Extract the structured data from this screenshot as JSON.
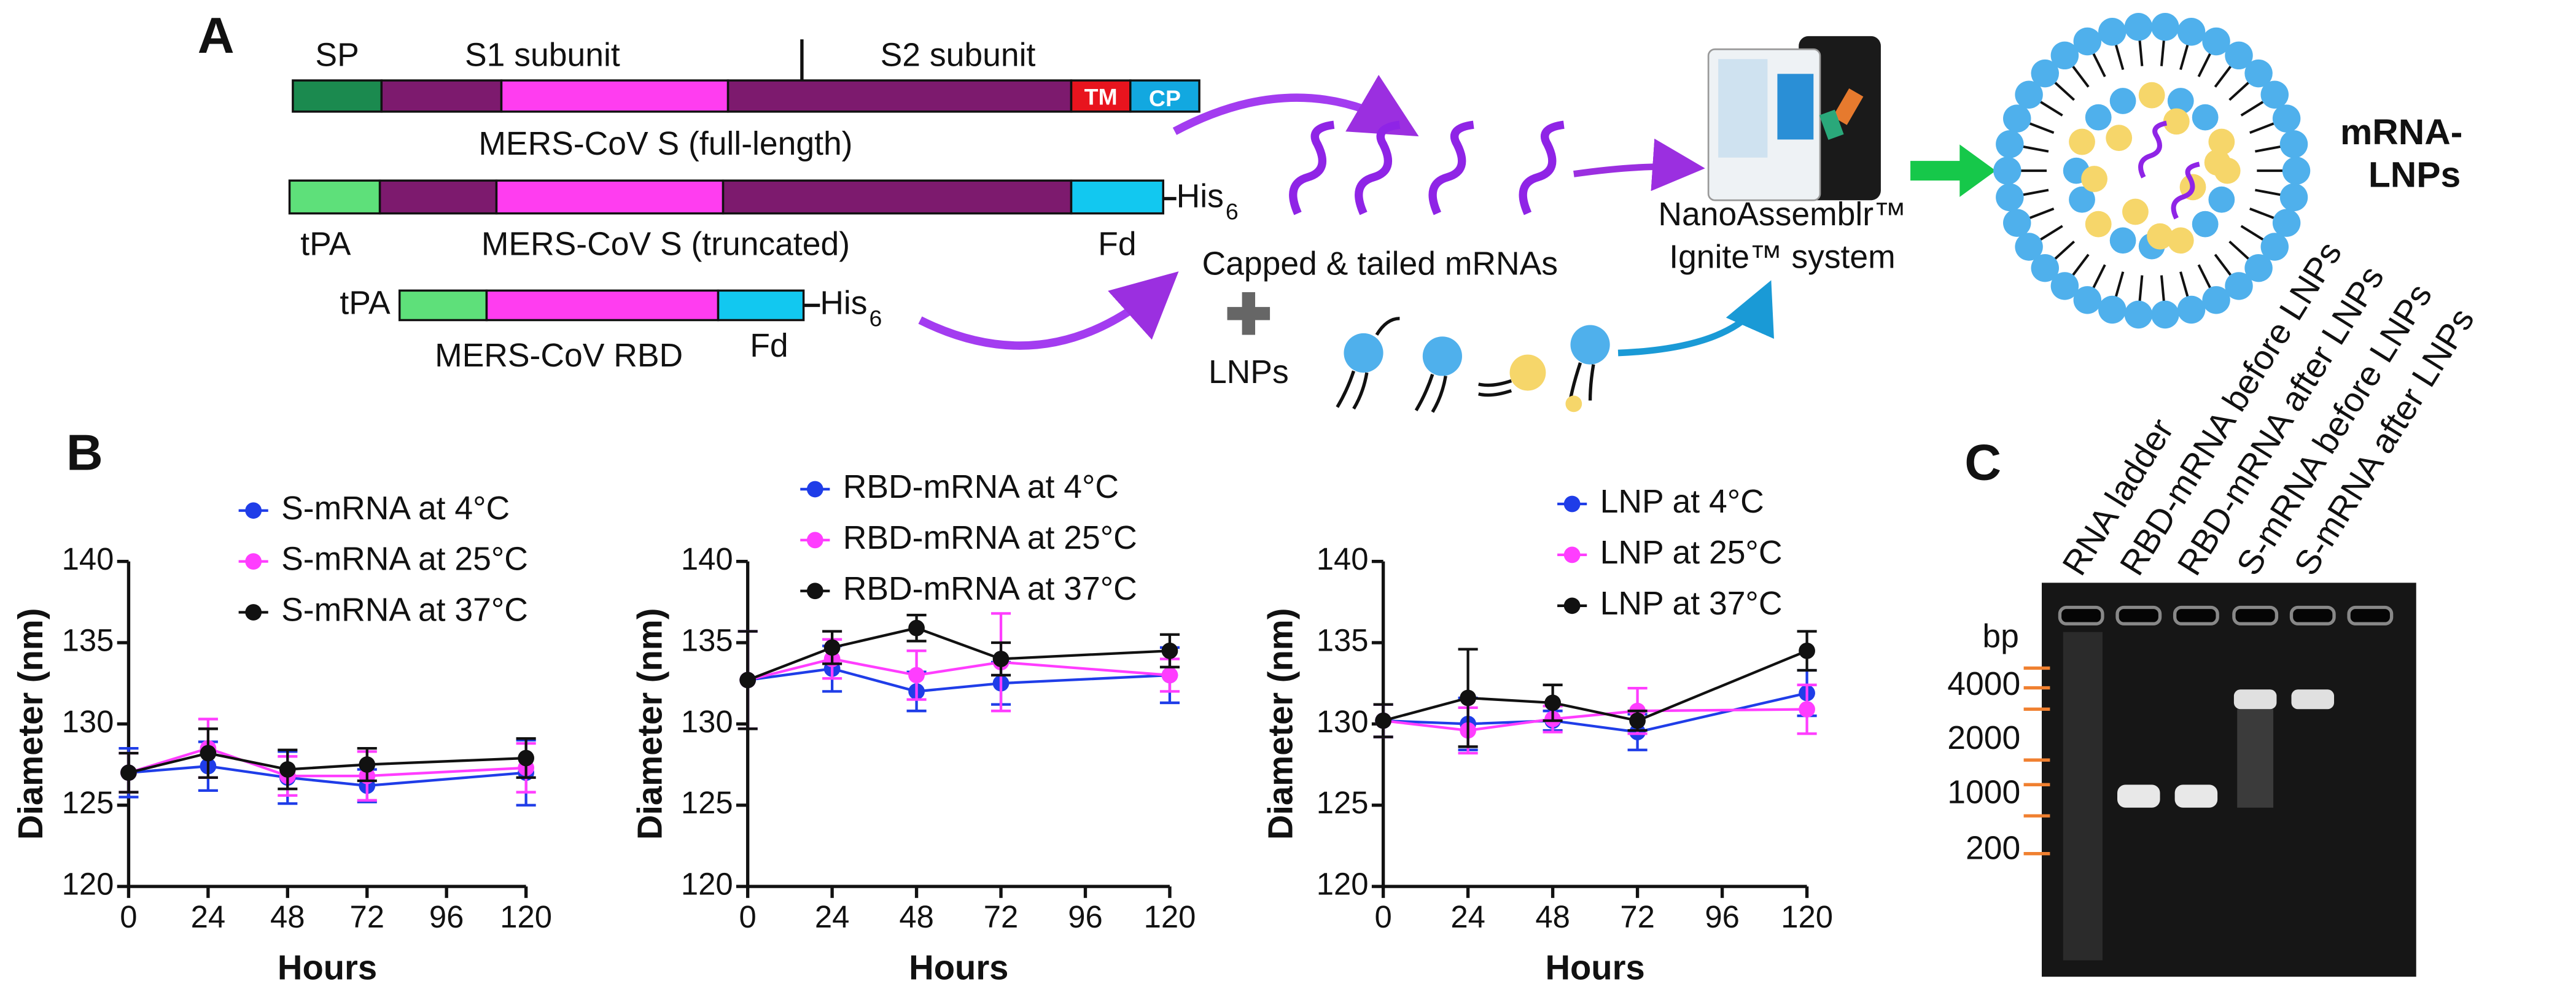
{
  "panel_a": {
    "label": "A",
    "sp": "SP",
    "s1": "S1 subunit",
    "s2": "S2 subunit",
    "tm": "TM",
    "cp": "CP",
    "full_length": "MERS-CoV S (full-length)",
    "tpa_1": "tPA",
    "truncated": "MERS-CoV S (truncated)",
    "fd_1": "Fd",
    "his_1": "His",
    "his_sub_1": "6",
    "tpa_2": "tPA",
    "rbd": "MERS-CoV RBD",
    "fd_2": "Fd",
    "his_2": "His",
    "his_sub_2": "6",
    "mrnas": "Capped & tailed mRNAs",
    "lnps": "LNPs",
    "device_1": "NanoAssemblr™",
    "device_2": "Ignite™ system",
    "product_1": "mRNA-",
    "product_2": "LNPs"
  },
  "panel_b": {
    "label": "B"
  },
  "panel_c": {
    "label": "C",
    "lanes": [
      "RNA ladder",
      "RBD-mRNA before LNPs",
      "RBD-mRNA after LNPs",
      "S-mRNA before LNPs",
      "S-mRNA after LNPs"
    ],
    "unit": "bp",
    "ladder": [
      "4000",
      "2000",
      "1000",
      "200"
    ]
  },
  "chart_data": [
    {
      "type": "line",
      "xlabel": "Hours",
      "ylabel": "Diameter (nm)",
      "x": [
        0,
        24,
        48,
        72,
        120
      ],
      "xlim": [
        0,
        120
      ],
      "xticks": [
        0,
        24,
        48,
        72,
        96,
        120
      ],
      "ylim": [
        120,
        140
      ],
      "yticks": [
        120,
        125,
        130,
        135,
        140
      ],
      "series": [
        {
          "name": "S-mRNA at 4°C",
          "color": "#1f3de8",
          "values": [
            127.0,
            127.4,
            126.7,
            126.2,
            127.0
          ],
          "errors": [
            1.5,
            1.5,
            1.6,
            1.0,
            2.0
          ]
        },
        {
          "name": "S-mRNA at 25°C",
          "color": "#ff3dff",
          "values": [
            127.0,
            128.5,
            126.8,
            126.8,
            127.3
          ],
          "errors": [
            1.2,
            1.8,
            1.2,
            1.5,
            1.5
          ]
        },
        {
          "name": "S-mRNA at 37°C",
          "color": "#111111",
          "values": [
            127.0,
            128.2,
            127.2,
            127.5,
            127.9
          ],
          "errors": [
            1.2,
            1.5,
            1.2,
            1.0,
            1.2
          ]
        }
      ]
    },
    {
      "type": "line",
      "xlabel": "Hours",
      "ylabel": "Diameter (nm)",
      "x": [
        0,
        24,
        48,
        72,
        120
      ],
      "xlim": [
        0,
        120
      ],
      "xticks": [
        0,
        24,
        48,
        72,
        96,
        120
      ],
      "ylim": [
        120,
        140
      ],
      "yticks": [
        120,
        125,
        130,
        135,
        140
      ],
      "series": [
        {
          "name": "RBD-mRNA at 4°C",
          "color": "#1f3de8",
          "values": [
            132.7,
            133.4,
            132.0,
            132.5,
            133.0
          ],
          "errors": [
            3.0,
            1.4,
            1.2,
            1.3,
            1.7
          ]
        },
        {
          "name": "RBD-mRNA at 25°C",
          "color": "#ff3dff",
          "values": [
            132.7,
            134.0,
            133.0,
            133.8,
            133.0
          ],
          "errors": [
            3.0,
            1.2,
            1.5,
            3.0,
            1.0
          ]
        },
        {
          "name": "RBD-mRNA at 37°C",
          "color": "#111111",
          "values": [
            132.7,
            134.7,
            135.9,
            134.0,
            134.5
          ],
          "errors": [
            3.0,
            1.0,
            0.8,
            1.0,
            1.0
          ]
        }
      ]
    },
    {
      "type": "line",
      "xlabel": "Hours",
      "ylabel": "Diameter (nm)",
      "x": [
        0,
        24,
        48,
        72,
        120
      ],
      "xlim": [
        0,
        120
      ],
      "xticks": [
        0,
        24,
        48,
        72,
        96,
        120
      ],
      "ylim": [
        120,
        140
      ],
      "yticks": [
        120,
        125,
        130,
        135,
        140
      ],
      "series": [
        {
          "name": "LNP at 4°C",
          "color": "#1f3de8",
          "values": [
            130.2,
            130.0,
            130.2,
            129.5,
            131.9
          ],
          "errors": [
            1.0,
            1.6,
            0.6,
            1.1,
            1.4
          ]
        },
        {
          "name": "LNP at 25°C",
          "color": "#ff3dff",
          "values": [
            130.2,
            129.6,
            130.3,
            130.8,
            130.9
          ],
          "errors": [
            1.0,
            1.4,
            0.8,
            1.4,
            1.5
          ]
        },
        {
          "name": "LNP at 37°C",
          "color": "#111111",
          "values": [
            130.2,
            131.6,
            131.3,
            130.2,
            134.5
          ],
          "errors": [
            1.0,
            3.0,
            1.1,
            0.6,
            1.2
          ]
        }
      ]
    }
  ]
}
